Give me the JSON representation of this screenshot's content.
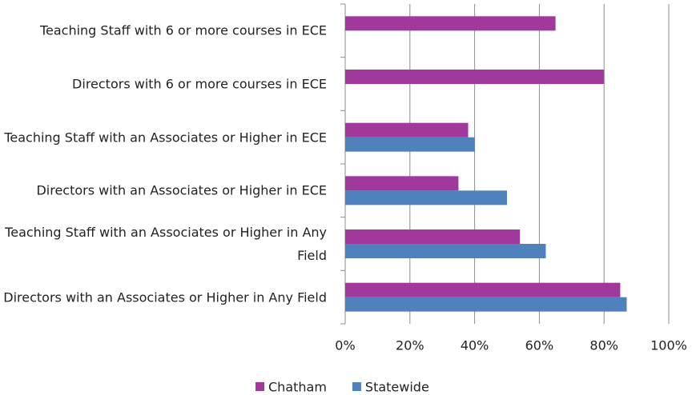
{
  "chart_data": {
    "type": "bar",
    "orientation": "horizontal",
    "categories": [
      "Teaching Staff with 6 or more courses in ECE",
      "Directors with 6 or more courses in ECE",
      "Teaching Staff with an Associates or Higher in ECE",
      "Directors with an Associates or Higher in ECE",
      "Teaching Staff with an Associates or Higher in Any Field",
      "Directors with an Associates or Higher in Any Field"
    ],
    "series": [
      {
        "name": "Chatham",
        "color": "#a0399b",
        "values": [
          65,
          80,
          38,
          35,
          54,
          85
        ]
      },
      {
        "name": "Statewide",
        "color": "#4f81bd",
        "values": [
          null,
          null,
          40,
          50,
          62,
          87
        ]
      }
    ],
    "xlim": [
      0,
      100
    ],
    "xticks": [
      {
        "value": 0,
        "label": "0%"
      },
      {
        "value": 20,
        "label": "20%"
      },
      {
        "value": 40,
        "label": "40%"
      },
      {
        "value": 60,
        "label": "60%"
      },
      {
        "value": 80,
        "label": "80%"
      },
      {
        "value": 100,
        "label": "100%"
      }
    ],
    "grid": true,
    "legend": "bottom"
  }
}
